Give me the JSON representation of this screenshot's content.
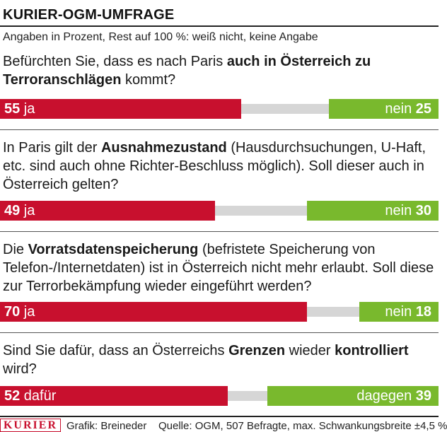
{
  "header": {
    "title": "KURIER-OGM-UMFRAGE",
    "subtitle": "Angaben in Prozent, Rest auf 100 %: weiß nicht, keine Angabe"
  },
  "colors": {
    "yes": "#c8102e",
    "no": "#79b92d",
    "gap": "#d6d6d6"
  },
  "questions": [
    {
      "parts": [
        {
          "t": "Befürchten Sie, dass es nach Paris ",
          "b": false
        },
        {
          "t": "auch in Österreich zu Terroranschlägen",
          "b": true
        },
        {
          "t": " kommt?",
          "b": false
        }
      ],
      "yes_value": "55",
      "yes_label": "ja",
      "no_value": "25",
      "no_label": "nein"
    },
    {
      "parts": [
        {
          "t": "In Paris gilt der ",
          "b": false
        },
        {
          "t": "Ausnahmezustand",
          "b": true
        },
        {
          "t": " (Hausdurchsuchungen, U-Haft, etc. sind auch ohne Richter-Beschluss möglich). Soll dieser auch in Österreich gelten?",
          "b": false
        }
      ],
      "yes_value": "49",
      "yes_label": "ja",
      "no_value": "30",
      "no_label": "nein"
    },
    {
      "parts": [
        {
          "t": "Die ",
          "b": false
        },
        {
          "t": "Vorratsdatenspeicherung",
          "b": true
        },
        {
          "t": " (befristete Speicherung von Telefon-/Internetdaten) ist in Österreich nicht mehr erlaubt. Soll diese zur Terrorbekämpfung wieder eingeführt werden?",
          "b": false
        }
      ],
      "yes_value": "70",
      "yes_label": "ja",
      "no_value": "18",
      "no_label": "nein"
    },
    {
      "parts": [
        {
          "t": "Sind Sie dafür, dass an Österreichs ",
          "b": false
        },
        {
          "t": "Grenzen",
          "b": true
        },
        {
          "t": " wieder ",
          "b": false
        },
        {
          "t": "kontrolliert",
          "b": true
        },
        {
          "t": " wird?",
          "b": false
        }
      ],
      "yes_value": "52",
      "yes_label": "dafür",
      "no_value": "39",
      "no_label": "dagegen"
    }
  ],
  "chart_data": {
    "type": "bar",
    "categories": [
      "Befürchten Sie, dass es nach Paris auch in Österreich zu Terroranschlägen kommt?",
      "In Paris gilt der Ausnahmezustand (Hausdurchsuchungen, U-Haft, etc. sind auch ohne Richter-Beschluss möglich). Soll dieser auch in Österreich gelten?",
      "Die Vorratsdatenspeicherung (befristete Speicherung von Telefon-/Internetdaten) ist in Österreich nicht mehr erlaubt. Soll diese zur Terrorbekämpfung wieder eingeführt werden?",
      "Sind Sie dafür, dass an Österreichs Grenzen wieder kontrolliert wird?"
    ],
    "series": [
      {
        "values": [
          55,
          49,
          70,
          52
        ]
      },
      {
        "values": [
          25,
          30,
          18,
          39
        ]
      }
    ],
    "title": "KURIER-OGM-UMFRAGE",
    "ylim": [
      0,
      100
    ]
  },
  "footer": {
    "logo": "KURIER",
    "credit": "Grafik: Breineder",
    "source": "Quelle: OGM, 507 Befragte, max. Schwankungsbreite ±4,5 %"
  }
}
